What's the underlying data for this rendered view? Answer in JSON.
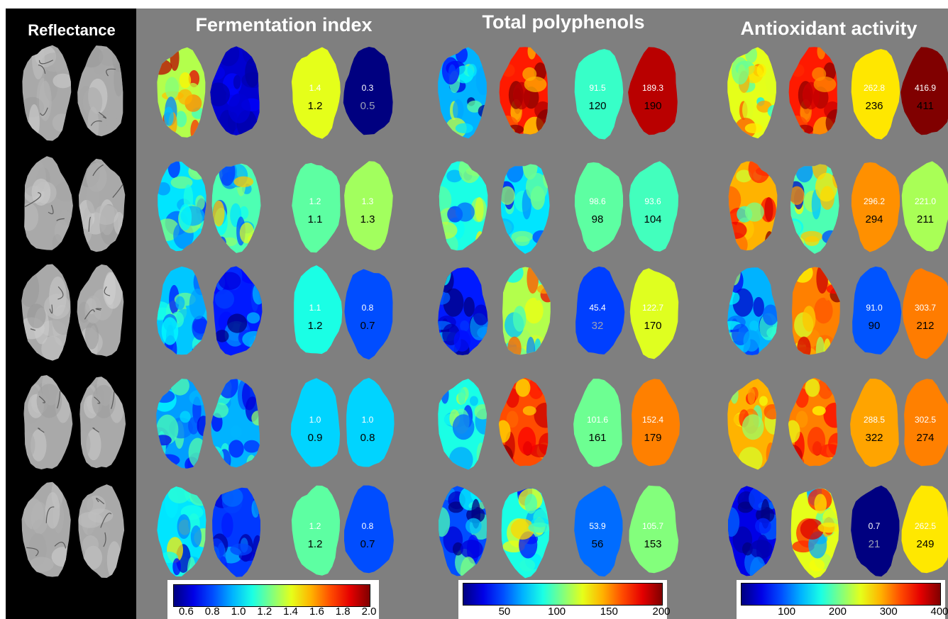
{
  "headings": {
    "reflectance": "Reflectance",
    "fermentation": "Fermentation index",
    "polyphenols": "Total polyphenols",
    "antioxidant": "Antioxidant activity"
  },
  "colorbars": {
    "fermentation": {
      "ticks": [
        "0.6",
        "0.8",
        "1.0",
        "1.2",
        "1.4",
        "1.6",
        "1.8",
        "2.0"
      ],
      "min": 0.5,
      "max": 2.0
    },
    "polyphenols": {
      "ticks": [
        "50",
        "100",
        "150",
        "200"
      ],
      "min": 10,
      "max": 200
    },
    "antioxidant": {
      "ticks": [
        "100",
        "200",
        "300",
        "400"
      ],
      "min": 10,
      "max": 400
    }
  },
  "rows": [
    {
      "fermentation": [
        {
          "predicted": "1.4",
          "measured": "1.2",
          "value": 1.4
        },
        {
          "predicted": "0.3",
          "measured": "0.5",
          "value": 0.3
        }
      ],
      "polyphenols": [
        {
          "predicted": "91.5",
          "measured": "120",
          "value": 91.5
        },
        {
          "predicted": "189.3",
          "measured": "190",
          "value": 189.3
        }
      ],
      "antioxidant": [
        {
          "predicted": "262.8",
          "measured": "236",
          "value": 262.8
        },
        {
          "predicted": "416.9",
          "measured": "411",
          "value": 416.9
        }
      ]
    },
    {
      "fermentation": [
        {
          "predicted": "1.2",
          "measured": "1.1",
          "value": 1.2
        },
        {
          "predicted": "1.3",
          "measured": "1.3",
          "value": 1.3
        }
      ],
      "polyphenols": [
        {
          "predicted": "98.6",
          "measured": "98",
          "value": 98.6
        },
        {
          "predicted": "93.6",
          "measured": "104",
          "value": 93.6
        }
      ],
      "antioxidant": [
        {
          "predicted": "296.2",
          "measured": "294",
          "value": 296.2
        },
        {
          "predicted": "221.0",
          "measured": "211",
          "value": 221.0
        }
      ]
    },
    {
      "fermentation": [
        {
          "predicted": "1.1",
          "measured": "1.2",
          "value": 1.1
        },
        {
          "predicted": "0.8",
          "measured": "0.7",
          "value": 0.8
        }
      ],
      "polyphenols": [
        {
          "predicted": "45.4",
          "measured": "32",
          "value": 45.4
        },
        {
          "predicted": "122.7",
          "measured": "170",
          "value": 122.7
        }
      ],
      "antioxidant": [
        {
          "predicted": "91.0",
          "measured": "90",
          "value": 91.0
        },
        {
          "predicted": "303.7",
          "measured": "212",
          "value": 303.7
        }
      ]
    },
    {
      "fermentation": [
        {
          "predicted": "1.0",
          "measured": "0.9",
          "value": 1.0
        },
        {
          "predicted": "1.0",
          "measured": "0.8",
          "value": 1.0
        }
      ],
      "polyphenols": [
        {
          "predicted": "101.6",
          "measured": "161",
          "value": 101.6
        },
        {
          "predicted": "152.4",
          "measured": "179",
          "value": 152.4
        }
      ],
      "antioxidant": [
        {
          "predicted": "288.5",
          "measured": "322",
          "value": 288.5
        },
        {
          "predicted": "302.5",
          "measured": "274",
          "value": 302.5
        }
      ]
    },
    {
      "fermentation": [
        {
          "predicted": "1.2",
          "measured": "1.2",
          "value": 1.2
        },
        {
          "predicted": "0.8",
          "measured": "0.7",
          "value": 0.8
        }
      ],
      "polyphenols": [
        {
          "predicted": "53.9",
          "measured": "56",
          "value": 53.9
        },
        {
          "predicted": "105.7",
          "measured": "153",
          "value": 105.7
        }
      ],
      "antioxidant": [
        {
          "predicted": "0.7",
          "measured": "21",
          "value": 0.7
        },
        {
          "predicted": "262.5",
          "measured": "249",
          "value": 262.5
        }
      ]
    }
  ]
}
